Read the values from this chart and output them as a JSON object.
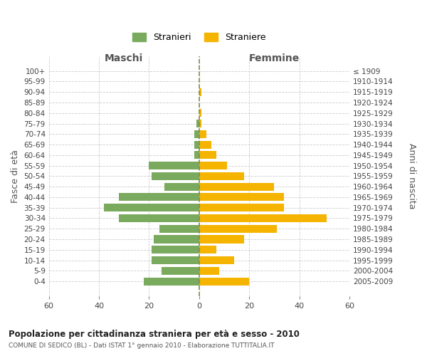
{
  "age_groups": [
    "0-4",
    "5-9",
    "10-14",
    "15-19",
    "20-24",
    "25-29",
    "30-34",
    "35-39",
    "40-44",
    "45-49",
    "50-54",
    "55-59",
    "60-64",
    "65-69",
    "70-74",
    "75-79",
    "80-84",
    "85-89",
    "90-94",
    "95-99",
    "100+"
  ],
  "birth_years": [
    "2005-2009",
    "2000-2004",
    "1995-1999",
    "1990-1994",
    "1985-1989",
    "1980-1984",
    "1975-1979",
    "1970-1974",
    "1965-1969",
    "1960-1964",
    "1955-1959",
    "1950-1954",
    "1945-1949",
    "1940-1944",
    "1935-1939",
    "1930-1934",
    "1925-1929",
    "1920-1924",
    "1915-1919",
    "1910-1914",
    "≤ 1909"
  ],
  "maschi": [
    22,
    15,
    19,
    19,
    18,
    16,
    32,
    38,
    32,
    14,
    19,
    20,
    2,
    2,
    2,
    1,
    0,
    0,
    0,
    0,
    0
  ],
  "femmine": [
    20,
    8,
    14,
    7,
    18,
    31,
    51,
    34,
    34,
    30,
    18,
    11,
    7,
    5,
    3,
    1,
    1,
    0,
    1,
    0,
    0
  ],
  "color_maschi": "#7aaa5e",
  "color_femmine": "#f5b400",
  "color_dashed": "#888855",
  "bg_color": "#ffffff",
  "grid_color": "#cccccc",
  "title": "Popolazione per cittadinanza straniera per età e sesso - 2010",
  "subtitle": "COMUNE DI SEDICO (BL) - Dati ISTAT 1° gennaio 2010 - Elaborazione TUTTITALIA.IT",
  "xlabel_left": "Maschi",
  "xlabel_right": "Femmine",
  "ylabel_left": "Fasce di età",
  "ylabel_right": "Anni di nascita",
  "legend_maschi": "Stranieri",
  "legend_femmine": "Straniere",
  "xlim": 60,
  "bar_height": 0.75
}
